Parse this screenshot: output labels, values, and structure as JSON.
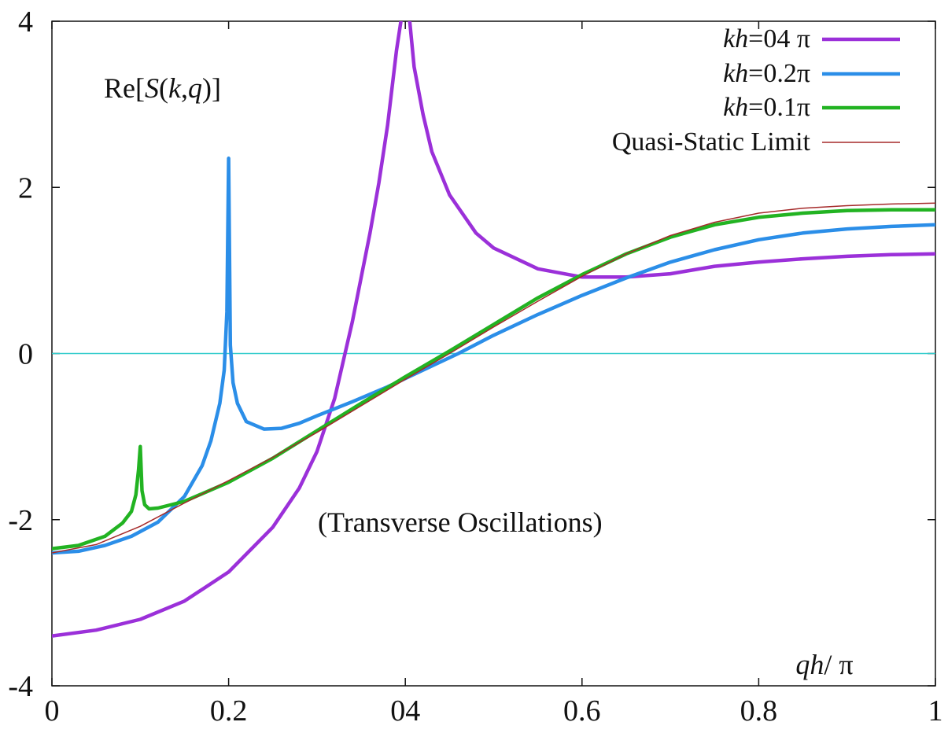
{
  "chart_data": {
    "type": "line",
    "title": "",
    "xlabel_parts": [
      "qh",
      "/ π"
    ],
    "ylabel_parts": [
      "Re[",
      "S",
      "(",
      "k",
      ",",
      "q",
      ")]"
    ],
    "annotation": "(Transverse Oscillations)",
    "xlim": [
      0,
      1
    ],
    "ylim": [
      -4,
      4
    ],
    "x_ticks": [
      "0",
      "0.2",
      "04",
      "0.6",
      "0.8",
      "1"
    ],
    "y_ticks": [
      "4",
      "2",
      "0",
      "-2",
      "-4"
    ],
    "legend_position": "top-right",
    "grid": false,
    "zero_line": {
      "y": 0,
      "color": "#33cccc"
    },
    "series": [
      {
        "name_parts": [
          "kh",
          "=04 π"
        ],
        "color": "#9b30d9",
        "x": [
          0.0,
          0.05,
          0.1,
          0.15,
          0.2,
          0.25,
          0.28,
          0.3,
          0.32,
          0.34,
          0.36,
          0.37,
          0.38,
          0.39,
          0.395,
          0.4,
          0.405,
          0.41,
          0.42,
          0.43,
          0.45,
          0.48,
          0.5,
          0.55,
          0.6,
          0.65,
          0.7,
          0.75,
          0.8,
          0.85,
          0.9,
          0.95,
          1.0
        ],
        "y": [
          -3.4,
          -3.33,
          -3.2,
          -2.98,
          -2.63,
          -2.09,
          -1.62,
          -1.18,
          -0.54,
          0.38,
          1.45,
          2.05,
          2.75,
          3.65,
          4.0,
          4.5,
          4.0,
          3.45,
          2.88,
          2.43,
          1.91,
          1.45,
          1.27,
          1.02,
          0.92,
          0.92,
          0.96,
          1.05,
          1.1,
          1.14,
          1.17,
          1.19,
          1.2
        ]
      },
      {
        "name_parts": [
          "kh",
          "=0.2π"
        ],
        "color": "#2b8ee8",
        "x": [
          0.0,
          0.03,
          0.06,
          0.09,
          0.12,
          0.15,
          0.17,
          0.18,
          0.19,
          0.195,
          0.198,
          0.2,
          0.202,
          0.205,
          0.21,
          0.22,
          0.24,
          0.26,
          0.28,
          0.3,
          0.34,
          0.38,
          0.42,
          0.46,
          0.5,
          0.55,
          0.6,
          0.65,
          0.7,
          0.75,
          0.8,
          0.85,
          0.9,
          0.95,
          1.0
        ],
        "y": [
          -2.4,
          -2.38,
          -2.31,
          -2.2,
          -2.03,
          -1.72,
          -1.35,
          -1.05,
          -0.6,
          -0.2,
          0.5,
          2.35,
          0.1,
          -0.35,
          -0.6,
          -0.82,
          -0.91,
          -0.9,
          -0.84,
          -0.75,
          -0.58,
          -0.4,
          -0.2,
          0.0,
          0.22,
          0.47,
          0.7,
          0.91,
          1.1,
          1.25,
          1.37,
          1.45,
          1.5,
          1.53,
          1.55
        ]
      },
      {
        "name_parts": [
          "kh",
          "=0.1π"
        ],
        "color": "#22b322",
        "x": [
          0.0,
          0.03,
          0.06,
          0.08,
          0.09,
          0.095,
          0.098,
          0.1,
          0.102,
          0.105,
          0.11,
          0.12,
          0.15,
          0.2,
          0.25,
          0.3,
          0.35,
          0.4,
          0.45,
          0.5,
          0.55,
          0.6,
          0.65,
          0.7,
          0.75,
          0.8,
          0.85,
          0.9,
          0.95,
          1.0
        ],
        "y": [
          -2.35,
          -2.31,
          -2.2,
          -2.04,
          -1.9,
          -1.7,
          -1.4,
          -1.12,
          -1.65,
          -1.82,
          -1.87,
          -1.86,
          -1.78,
          -1.55,
          -1.26,
          -0.93,
          -0.6,
          -0.28,
          0.03,
          0.35,
          0.67,
          0.95,
          1.2,
          1.4,
          1.55,
          1.64,
          1.69,
          1.72,
          1.73,
          1.73
        ]
      },
      {
        "name_parts": [
          "",
          "Quasi-Static Limit"
        ],
        "color": "#a52a2a",
        "thin": true,
        "x": [
          0.0,
          0.05,
          0.1,
          0.15,
          0.2,
          0.25,
          0.3,
          0.35,
          0.4,
          0.45,
          0.5,
          0.55,
          0.6,
          0.65,
          0.7,
          0.75,
          0.8,
          0.85,
          0.9,
          0.95,
          1.0
        ],
        "y": [
          -2.4,
          -2.3,
          -2.08,
          -1.8,
          -1.53,
          -1.25,
          -0.95,
          -0.63,
          -0.31,
          0.0,
          0.32,
          0.63,
          0.93,
          1.2,
          1.42,
          1.58,
          1.69,
          1.75,
          1.78,
          1.8,
          1.81
        ]
      }
    ]
  }
}
